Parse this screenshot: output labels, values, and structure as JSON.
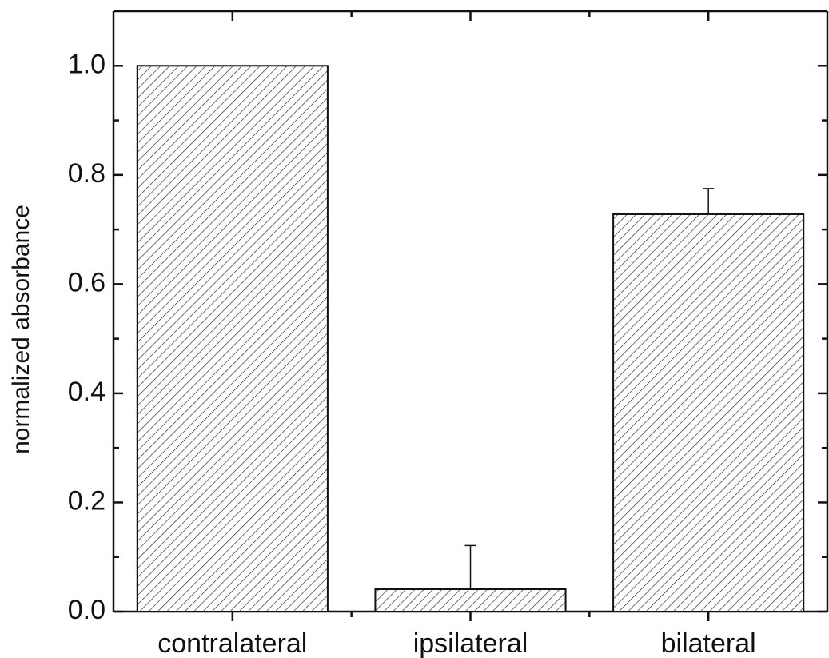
{
  "chart_data": {
    "type": "bar",
    "y_label": "normalized absorbance",
    "categories": [
      "contralateral",
      "ipsilateral",
      "bilateral"
    ],
    "values": [
      1.0,
      0.041,
      0.728
    ],
    "errors": [
      null,
      0.08,
      0.047
    ],
    "color": "#ffffff",
    "ylim": [
      0,
      1.1
    ],
    "yticks": [
      {
        "value": 0,
        "label": "0.0"
      },
      0.2,
      0.4,
      0.6,
      0.8,
      {
        "value": 1.0,
        "label": "1.0"
      }
    ],
    "grid": false
  }
}
